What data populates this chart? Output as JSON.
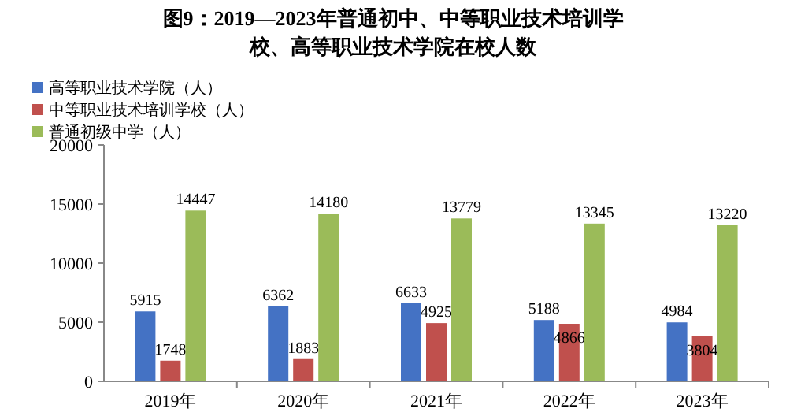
{
  "chart_data": {
    "type": "bar",
    "title": "图9：2019—2023年普通初中、中等职业技术培训学校、高等职业技术学院在校人数",
    "categories": [
      "2019年",
      "2020年",
      "2021年",
      "2022年",
      "2023年"
    ],
    "series": [
      {
        "name": "高等职业技术学院（人）",
        "color": "#4472c4",
        "values": [
          5915,
          6362,
          6633,
          5188,
          4984
        ]
      },
      {
        "name": "中等职业技术培训学校（人）",
        "color": "#c0504d",
        "values": [
          1748,
          1883,
          4925,
          4866,
          3804
        ]
      },
      {
        "name": "普通初级中学（人）",
        "color": "#9bbb59",
        "values": [
          14447,
          14180,
          13779,
          13345,
          13220
        ]
      }
    ],
    "ylim": [
      0,
      20000
    ],
    "yticks": [
      0,
      5000,
      10000,
      15000,
      20000
    ],
    "data_labels": true,
    "legend": "top left"
  }
}
